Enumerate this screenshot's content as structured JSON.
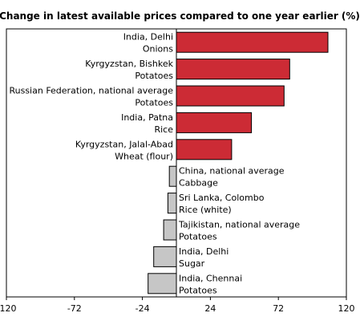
{
  "chart_data": {
    "type": "bar",
    "orientation": "horizontal",
    "title": "Change in latest available prices compared to one year earlier (%)",
    "xlabel": "",
    "ylabel": "",
    "xlim": [
      -120,
      120
    ],
    "xticks": [
      "-120",
      "-72",
      "-24",
      "24",
      "72",
      "120"
    ],
    "grid": false,
    "legend": "none",
    "categories": [
      {
        "line1": "India, Delhi",
        "line2": "Onions"
      },
      {
        "line1": "Kyrgyzstan, Bishkek",
        "line2": "Potatoes"
      },
      {
        "line1": "Russian Federation, national average",
        "line2": "Potatoes"
      },
      {
        "line1": "India, Patna",
        "line2": "Rice"
      },
      {
        "line1": "Kyrgyzstan, Jalal-Abad",
        "line2": "Wheat (flour)"
      },
      {
        "line1": "China, national average",
        "line2": "Cabbage"
      },
      {
        "line1": "Sri Lanka, Colombo",
        "line2": "Rice (white)"
      },
      {
        "line1": "Tajikistan, national average",
        "line2": "Potatoes"
      },
      {
        "line1": "India, Delhi",
        "line2": "Sugar"
      },
      {
        "line1": "India, Chennai",
        "line2": "Potatoes"
      }
    ],
    "values": [
      107,
      80,
      76,
      53,
      39,
      -5,
      -6,
      -9,
      -16,
      -20
    ],
    "colors": {
      "positive": "#cc2b35",
      "negative": "#c6c6c6",
      "stroke": "#000000"
    }
  }
}
